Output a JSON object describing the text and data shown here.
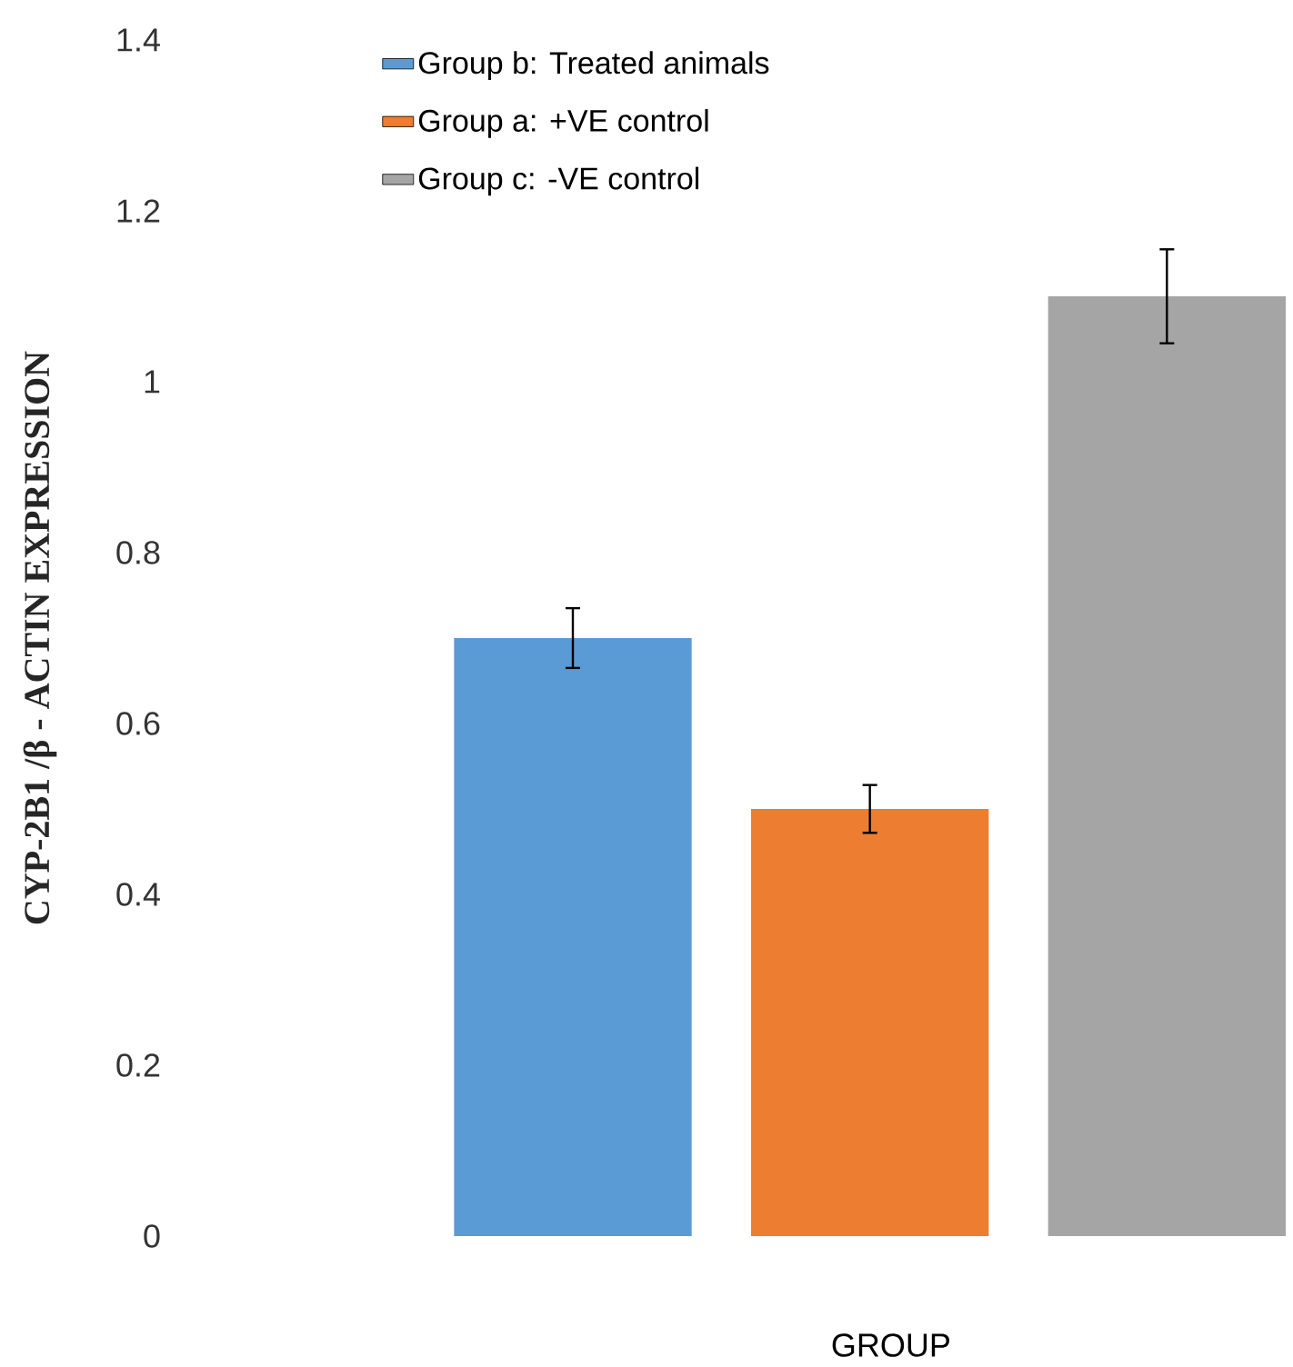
{
  "chart_data": {
    "type": "bar",
    "xlabel": "GROUP",
    "ylabel": "CYP-2B1 /β - ACTIN EXPRESSION",
    "categories": [
      null,
      null,
      null
    ],
    "stacked": true,
    "series": [
      {
        "name": "Group b: Treated animals",
        "color": "#5b9bd5",
        "values": [
          0.7,
          null,
          null
        ],
        "errors": [
          0.035,
          null,
          null
        ]
      },
      {
        "name": "Group a: +VE control",
        "color": "#ed7d31",
        "values": [
          null,
          0.5,
          null
        ],
        "errors": [
          null,
          0.028,
          null
        ]
      },
      {
        "name": "Group c: -VE control",
        "color": "#a5a5a5",
        "values": [
          null,
          null,
          1.1
        ],
        "errors": [
          null,
          null,
          0.055
        ]
      }
    ],
    "ylim": [
      0,
      1.4
    ],
    "yticks": [
      0,
      0.2,
      0.4,
      0.6,
      0.8,
      1,
      1.2,
      1.4
    ],
    "legend": "top left",
    "tick_labels": "y"
  }
}
